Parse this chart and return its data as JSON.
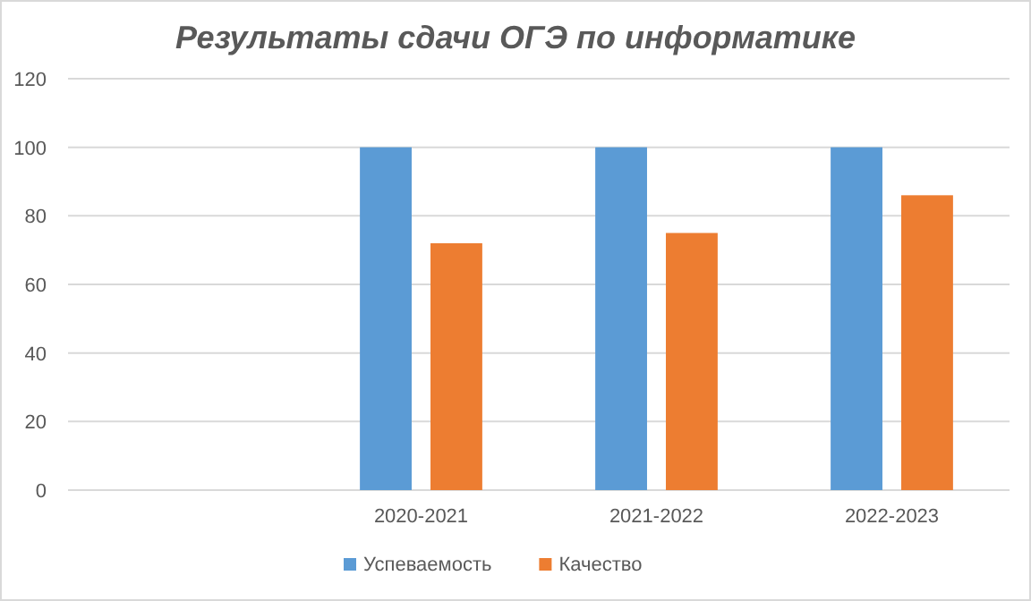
{
  "chart_data": {
    "type": "bar",
    "title": "Результаты сдачи ОГЭ по информатике",
    "categories": [
      null,
      "2020-2021",
      "2021-2022",
      "2022-2023"
    ],
    "series": [
      {
        "name": "Успеваемость",
        "color": "#5b9bd5",
        "values": [
          null,
          100,
          100,
          100
        ]
      },
      {
        "name": "Качество",
        "color": "#ed7d31",
        "values": [
          null,
          72,
          75,
          86
        ]
      }
    ],
    "ylim": [
      0,
      120
    ],
    "yticks": [
      0,
      20,
      40,
      60,
      80,
      100,
      120
    ],
    "grid": "y",
    "legend": "bottom"
  }
}
